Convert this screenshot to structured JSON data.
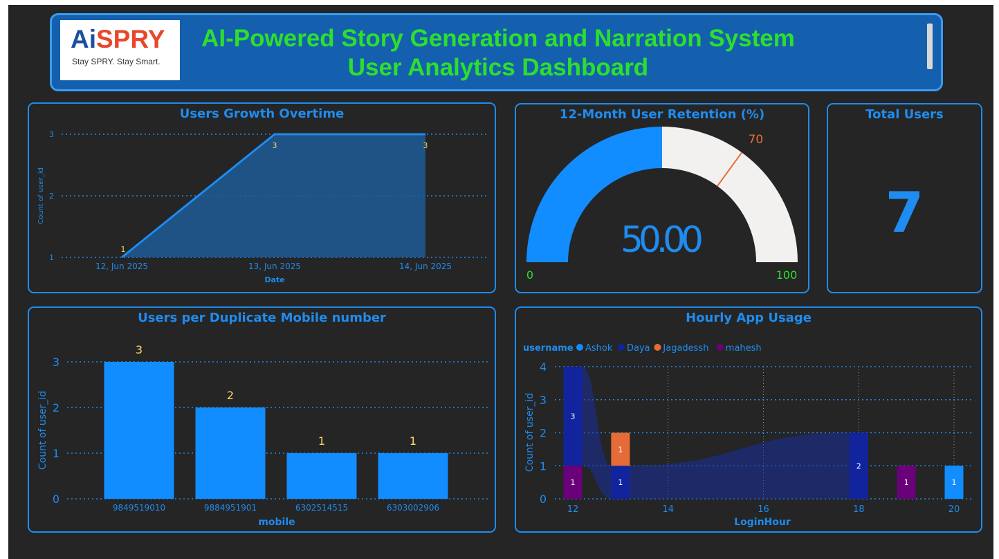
{
  "header": {
    "logo_mark_ai": "Ai",
    "logo_mark_spry": "SPRY",
    "logo_tagline": "Stay SPRY. Stay Smart.",
    "title_line1": "AI-Powered Story Generation and Narration System",
    "title_line2": "User Analytics Dashboard"
  },
  "colors": {
    "accent": "#1e8cf0",
    "title_green": "#2ddf2d",
    "label_yellow": "#ffd966",
    "ashok": "#118dff",
    "daya": "#12239e",
    "jagadessh": "#e66c37",
    "mahesh": "#6b007b"
  },
  "users_growth": {
    "title": "Users Growth Overtime",
    "chart_data": {
      "type": "area",
      "categories": [
        "12, Jun 2025",
        "13, Jun 2025",
        "14, Jun 2025"
      ],
      "values": [
        1,
        3,
        3
      ],
      "data_labels": [
        "1",
        "3",
        "3"
      ],
      "yticks": [
        "1",
        "2",
        "3"
      ],
      "ylim": [
        1,
        3
      ],
      "xlabel": "Date",
      "ylabel": "Count of user_id",
      "grid": true
    }
  },
  "retention": {
    "title": "12-Month User Retention (%)",
    "chart_data": {
      "type": "gauge",
      "value": 50,
      "value_label": "50.00",
      "min": 0,
      "max": 100,
      "min_label": "0",
      "max_label": "100",
      "target": 70,
      "target_label": "70"
    }
  },
  "total_users": {
    "title": "Total Users",
    "value": "7"
  },
  "duplicate_mobile": {
    "title": "Users per Duplicate Mobile number",
    "chart_data": {
      "type": "bar",
      "categories": [
        "9849519010",
        "9884951901",
        "6302514515",
        "6303002906"
      ],
      "values": [
        3,
        2,
        1,
        1
      ],
      "data_labels": [
        "3",
        "2",
        "1",
        "1"
      ],
      "yticks": [
        "0",
        "1",
        "2",
        "3"
      ],
      "ylim": [
        0,
        3
      ],
      "xlabel": "mobile",
      "ylabel": "Count of user_id",
      "grid": true
    }
  },
  "hourly_usage": {
    "title": "Hourly App Usage",
    "legend_title": "username",
    "chart_data": {
      "type": "bar",
      "stacked": true,
      "x_ticks": [
        "12",
        "14",
        "16",
        "18",
        "20"
      ],
      "yticks": [
        "0",
        "1",
        "2",
        "3",
        "4"
      ],
      "ylim": [
        0,
        4
      ],
      "xlim": [
        12,
        20
      ],
      "xlabel": "LoginHour",
      "ylabel": "Count of user_id",
      "series": [
        {
          "name": "Ashok",
          "points": [
            {
              "x": 20,
              "y": 1
            }
          ]
        },
        {
          "name": "Daya",
          "points": [
            {
              "x": 12,
              "y": 3
            },
            {
              "x": 13,
              "y": 1
            },
            {
              "x": 18,
              "y": 2
            }
          ]
        },
        {
          "name": "Jagadessh",
          "points": [
            {
              "x": 13,
              "y": 1
            }
          ]
        },
        {
          "name": "mahesh",
          "points": [
            {
              "x": 12,
              "y": 1
            },
            {
              "x": 19,
              "y": 1
            }
          ]
        }
      ],
      "stack_order": [
        "mahesh",
        "Daya",
        "Jagadessh",
        "Ashok"
      ],
      "legend_placement": "top-left"
    }
  }
}
